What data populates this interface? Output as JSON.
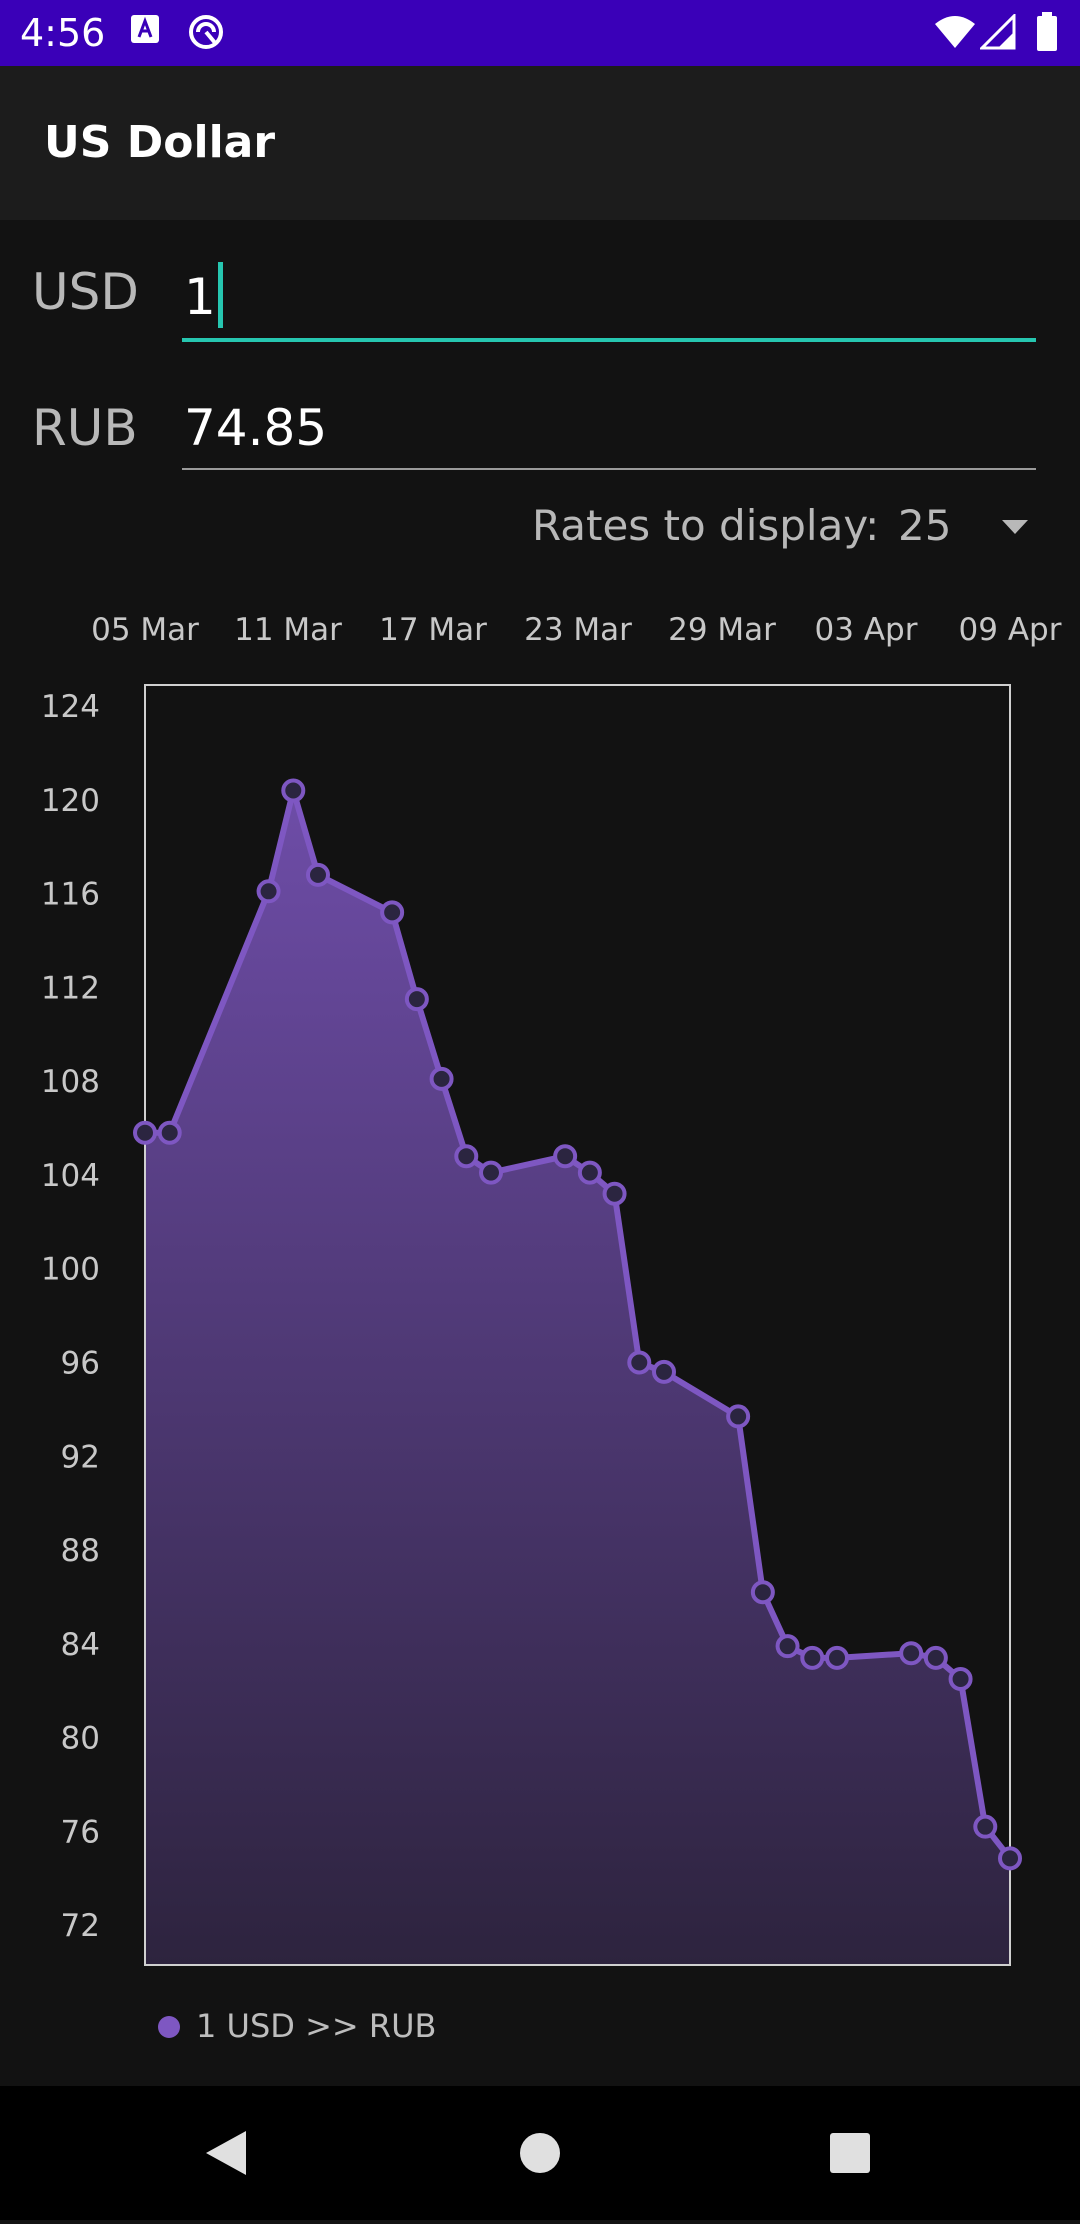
{
  "status_bar": {
    "time": "4:56",
    "icons": [
      "notification-a-icon",
      "sync-icon",
      "wifi-icon",
      "signal-icon",
      "battery-icon"
    ]
  },
  "app_bar": {
    "title": "US Dollar"
  },
  "converter": {
    "from_currency": "USD",
    "from_value": "1",
    "to_currency": "RUB",
    "to_value": "74.85"
  },
  "rates": {
    "label": "Rates to display:",
    "selected": "25"
  },
  "colors": {
    "accent": "#26c6b0",
    "series": "#7e57c2",
    "status_bar": "#3a00b8"
  },
  "chart_data": {
    "type": "area",
    "x_tick_labels": [
      "05 Mar",
      "11 Mar",
      "17 Mar",
      "23 Mar",
      "29 Mar",
      "03 Apr",
      "09 Apr"
    ],
    "y_tick_labels": [
      "124",
      "120",
      "116",
      "112",
      "108",
      "104",
      "100",
      "96",
      "92",
      "88",
      "84",
      "80",
      "76",
      "72"
    ],
    "ylim": [
      70.3,
      124.9
    ],
    "xlim": [
      "2022-03-05",
      "2022-04-09"
    ],
    "series": [
      {
        "name": "1 USD  >>  RUB",
        "points": [
          {
            "x": "2022-03-05",
            "y": 105.8
          },
          {
            "x": "2022-03-06",
            "y": 105.8
          },
          {
            "x": "2022-03-10",
            "y": 116.1
          },
          {
            "x": "2022-03-11",
            "y": 120.4
          },
          {
            "x": "2022-03-12",
            "y": 116.8
          },
          {
            "x": "2022-03-15",
            "y": 115.2
          },
          {
            "x": "2022-03-16",
            "y": 111.5
          },
          {
            "x": "2022-03-17",
            "y": 108.1
          },
          {
            "x": "2022-03-18",
            "y": 104.8
          },
          {
            "x": "2022-03-19",
            "y": 104.1
          },
          {
            "x": "2022-03-22",
            "y": 104.8
          },
          {
            "x": "2022-03-23",
            "y": 104.1
          },
          {
            "x": "2022-03-24",
            "y": 103.2
          },
          {
            "x": "2022-03-25",
            "y": 96.0
          },
          {
            "x": "2022-03-26",
            "y": 95.6
          },
          {
            "x": "2022-03-29",
            "y": 93.7
          },
          {
            "x": "2022-03-30",
            "y": 86.2
          },
          {
            "x": "2022-03-31",
            "y": 83.9
          },
          {
            "x": "2022-04-01",
            "y": 83.4
          },
          {
            "x": "2022-04-02",
            "y": 83.4
          },
          {
            "x": "2022-04-05",
            "y": 83.6
          },
          {
            "x": "2022-04-06",
            "y": 83.4
          },
          {
            "x": "2022-04-07",
            "y": 82.5
          },
          {
            "x": "2022-04-08",
            "y": 76.2
          },
          {
            "x": "2022-04-09",
            "y": 74.85
          }
        ]
      }
    ],
    "grid": false,
    "legend_position": "bottom-left"
  }
}
